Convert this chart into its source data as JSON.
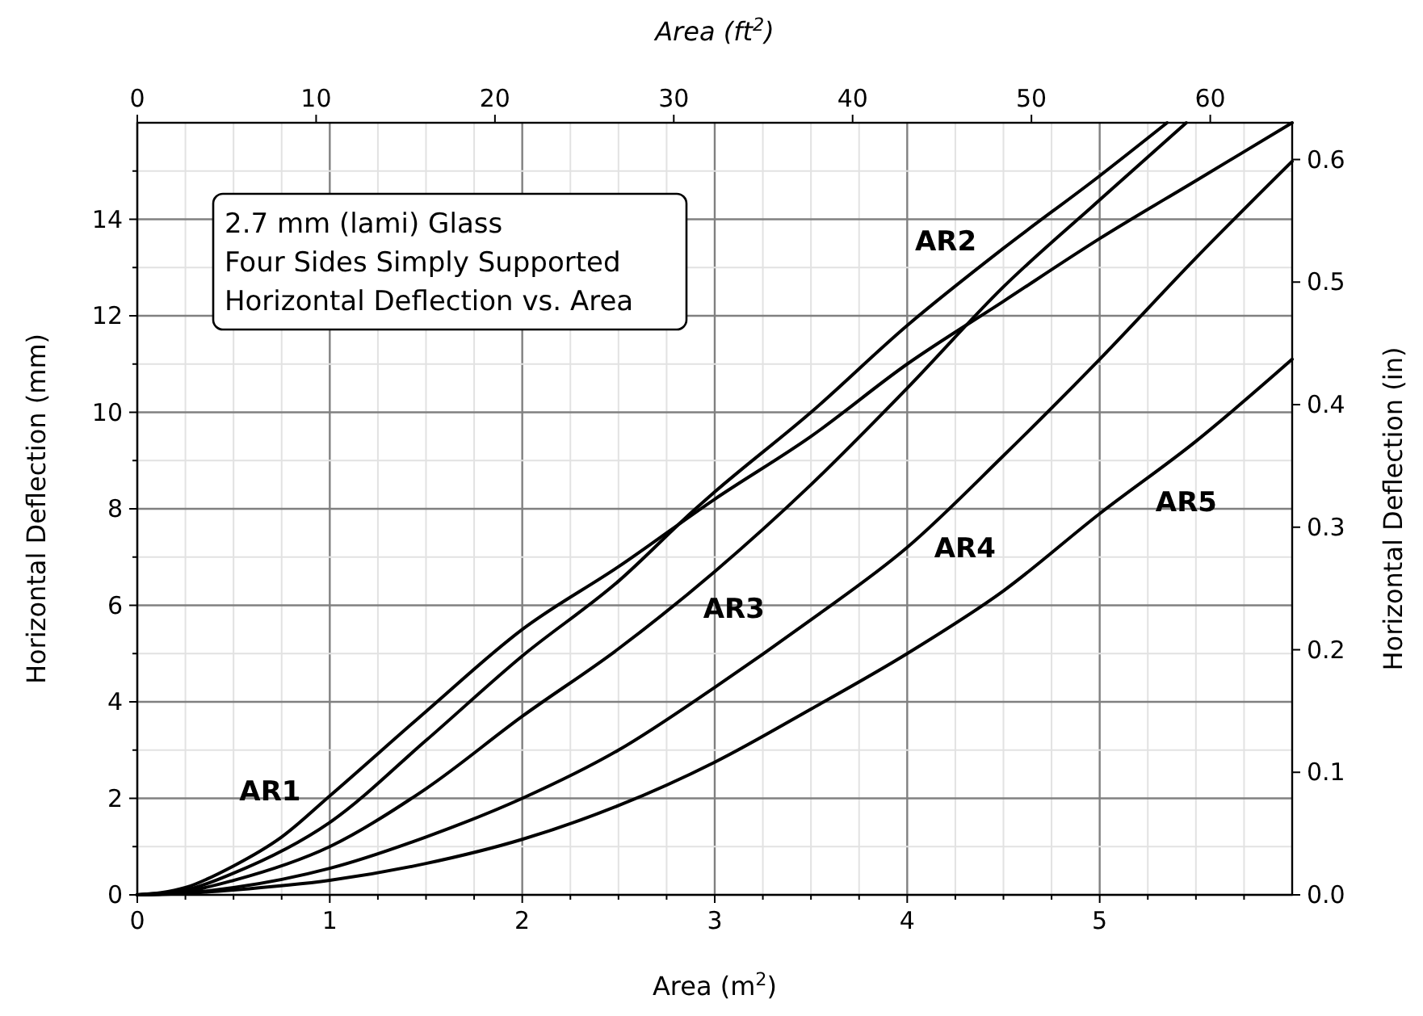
{
  "chart_data": {
    "type": "line",
    "xlabel": "Area (m$^{2}$)",
    "ylabel": "Horizontal Deflection (mm)",
    "y2label": "Horizontal Deflection (in)",
    "x2label": "Area (ft$^{2}$)",
    "xlim": [
      0,
      6.0
    ],
    "ylim": [
      0,
      16
    ],
    "x2lim": [
      0,
      64.58
    ],
    "y2lim": [
      0,
      0.63
    ],
    "xticks": [
      0,
      {
        "value": 0.25,
        "label": null
      },
      {
        "value": 0.5,
        "label": null
      },
      {
        "value": 0.75,
        "label": null
      },
      1,
      {
        "value": 1.25,
        "label": null
      },
      {
        "value": 1.5,
        "label": null
      },
      {
        "value": 1.75,
        "label": null
      },
      2,
      {
        "value": 2.25,
        "label": null
      },
      {
        "value": 2.5,
        "label": null
      },
      {
        "value": 2.75,
        "label": null
      },
      3,
      {
        "value": 3.25,
        "label": null
      },
      {
        "value": 3.5,
        "label": null
      },
      {
        "value": 3.75,
        "label": null
      },
      4,
      {
        "value": 4.25,
        "label": null
      },
      {
        "value": 4.5,
        "label": null
      },
      {
        "value": 4.75,
        "label": null
      },
      5,
      {
        "value": 5.25,
        "label": null
      },
      {
        "value": 5.5,
        "label": null
      },
      {
        "value": 5.75,
        "label": null
      }
    ],
    "yticks": [
      0,
      {
        "value": 1,
        "label": null
      },
      2,
      {
        "value": 3,
        "label": null
      },
      4,
      {
        "value": 5,
        "label": null
      },
      6,
      {
        "value": 7,
        "label": null
      },
      8,
      {
        "value": 9,
        "label": null
      },
      10,
      {
        "value": 11,
        "label": null
      },
      12,
      {
        "value": 13,
        "label": null
      },
      14,
      {
        "value": 15,
        "label": null
      }
    ],
    "x2ticks": [
      0,
      10,
      20,
      30,
      40,
      50,
      60
    ],
    "y2ticks": [
      {
        "value": 0,
        "label": "0.0"
      },
      0.1,
      0.2,
      0.3,
      0.4,
      0.5,
      0.6
    ],
    "grid": true,
    "marker": "none",
    "line_style": "solid",
    "series": [
      {
        "color": "#000000",
        "x": [
          0,
          0.25,
          0.5,
          0.75,
          1,
          1.5,
          2,
          2.5,
          3,
          3.5,
          4,
          4.5,
          5,
          5.5,
          6.0
        ],
        "values": [
          0,
          0.15,
          0.6,
          1.2,
          2.05,
          3.8,
          5.5,
          6.8,
          8.2,
          9.5,
          11.0,
          12.3,
          13.6,
          14.8,
          16.0
        ]
      },
      {
        "color": "#000000",
        "x": [
          0,
          0.25,
          0.5,
          1,
          1.5,
          2,
          2.5,
          2.9,
          3,
          3.5,
          4,
          4.5,
          5,
          5.35
        ],
        "values": [
          0,
          0.1,
          0.45,
          1.5,
          3.2,
          4.95,
          6.5,
          8.0,
          8.35,
          10.0,
          11.8,
          13.4,
          14.9,
          16.0
        ]
      },
      {
        "color": "#000000",
        "x": [
          0,
          0.25,
          0.5,
          1,
          1.5,
          2,
          2.5,
          3,
          3.5,
          4,
          4.5,
          5,
          5.45
        ],
        "values": [
          0,
          0.07,
          0.3,
          1.0,
          2.2,
          3.7,
          5.1,
          6.7,
          8.5,
          10.5,
          12.6,
          14.4,
          16.0
        ]
      },
      {
        "color": "#000000",
        "x": [
          0,
          0.25,
          0.5,
          1,
          1.5,
          2,
          2.5,
          3,
          3.5,
          4,
          4.5,
          5,
          5.5,
          6.0
        ],
        "values": [
          0,
          0.04,
          0.15,
          0.55,
          1.2,
          2.0,
          3.0,
          4.3,
          5.7,
          7.2,
          9.1,
          11.1,
          13.2,
          15.2
        ]
      },
      {
        "color": "#000000",
        "x": [
          0,
          0.25,
          0.5,
          1,
          1.5,
          2,
          2.5,
          3,
          3.5,
          4,
          4.5,
          5,
          5.5,
          6.0
        ],
        "values": [
          0,
          0.03,
          0.1,
          0.3,
          0.65,
          1.15,
          1.85,
          2.75,
          3.85,
          5.0,
          6.3,
          7.9,
          9.4,
          11.1
        ]
      }
    ],
    "annotations": [
      "2.7 mm (lami) Glass\nFour Sides Simply Supported\nHorizontal Deflection vs. Area",
      {
        "text": "AR1",
        "x": 0.69,
        "y": 1.05
      },
      {
        "text": "AR2",
        "x": 4.2,
        "y": 12.45
      },
      {
        "text": "AR3",
        "x": 3.1,
        "y": 7.05
      },
      {
        "text": "AR4",
        "x": 4.3,
        "y": 8.3
      },
      {
        "text": "AR5",
        "x": 5.45,
        "y": 9.25
      }
    ]
  }
}
